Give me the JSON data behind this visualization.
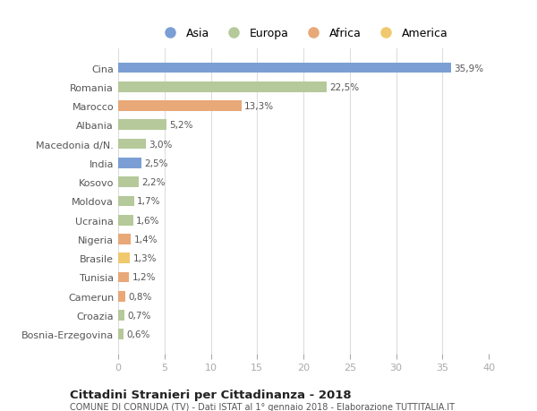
{
  "categories": [
    "Cina",
    "Romania",
    "Marocco",
    "Albania",
    "Macedonia d/N.",
    "India",
    "Kosovo",
    "Moldova",
    "Ucraina",
    "Nigeria",
    "Brasile",
    "Tunisia",
    "Camerun",
    "Croazia",
    "Bosnia-Erzegovina"
  ],
  "values": [
    35.9,
    22.5,
    13.3,
    5.2,
    3.0,
    2.5,
    2.2,
    1.7,
    1.6,
    1.4,
    1.3,
    1.2,
    0.8,
    0.7,
    0.6
  ],
  "labels": [
    "35,9%",
    "22,5%",
    "13,3%",
    "5,2%",
    "3,0%",
    "2,5%",
    "2,2%",
    "1,7%",
    "1,6%",
    "1,4%",
    "1,3%",
    "1,2%",
    "0,8%",
    "0,7%",
    "0,6%"
  ],
  "continents": [
    "Asia",
    "Europa",
    "Africa",
    "Europa",
    "Europa",
    "Asia",
    "Europa",
    "Europa",
    "Europa",
    "Africa",
    "America",
    "Africa",
    "Africa",
    "Europa",
    "Europa"
  ],
  "colors": {
    "Asia": "#7b9fd4",
    "Europa": "#b5c99a",
    "Africa": "#e8a878",
    "America": "#f0c96e"
  },
  "legend_entries": [
    "Asia",
    "Europa",
    "Africa",
    "America"
  ],
  "title": "Cittadini Stranieri per Cittadinanza - 2018",
  "subtitle": "COMUNE DI CORNUDA (TV) - Dati ISTAT al 1° gennaio 2018 - Elaborazione TUTTITALIA.IT",
  "xlim": [
    0,
    40
  ],
  "xticks": [
    0,
    5,
    10,
    15,
    20,
    25,
    30,
    35,
    40
  ],
  "background_color": "#ffffff",
  "grid_color": "#dddddd",
  "label_color": "#555555",
  "tick_color": "#aaaaaa"
}
